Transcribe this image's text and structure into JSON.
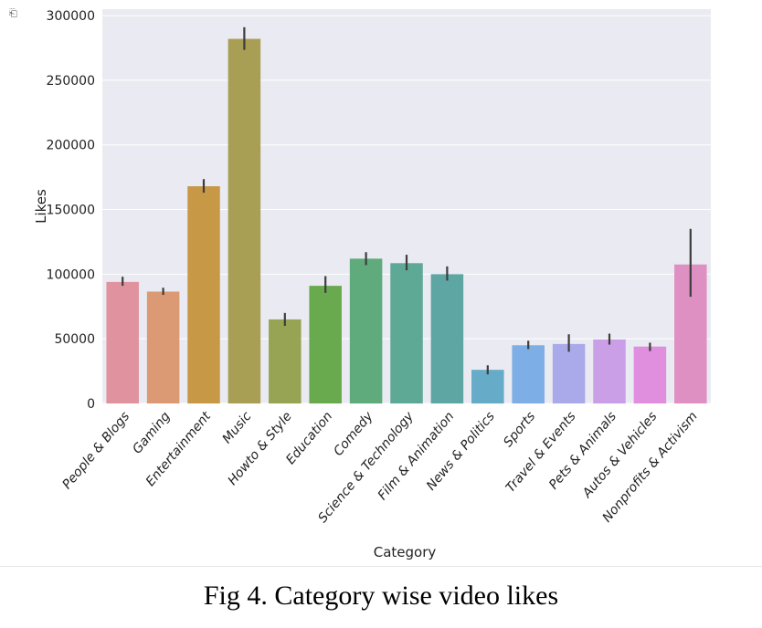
{
  "caption": "Fig 4. Category wise video likes",
  "output_icon": "output-cell-icon",
  "chart_data": {
    "type": "bar",
    "xlabel": "Category",
    "ylabel": "Likes",
    "ylim": [
      0,
      305000
    ],
    "yticks": [
      0,
      50000,
      100000,
      150000,
      200000,
      250000,
      300000
    ],
    "ytick_labels": [
      "0",
      "50000",
      "100000",
      "150000",
      "200000",
      "250000",
      "300000"
    ],
    "grid": true,
    "error_bars": true,
    "categories": [
      "People & Blogs",
      "Gaming",
      "Entertainment",
      "Music",
      "Howto & Style",
      "Education",
      "Comedy",
      "Science & Technology",
      "Film & Animation",
      "News & Politics",
      "Sports",
      "Travel & Events",
      "Pets & Animals",
      "Autos & Vehicles",
      "Nonprofits & Activism"
    ],
    "values": [
      94000,
      86500,
      168000,
      282000,
      65000,
      91000,
      112000,
      108500,
      100000,
      26000,
      45000,
      46000,
      49500,
      44000,
      107500
    ],
    "error_low": [
      91000,
      84000,
      163000,
      273500,
      60000,
      85500,
      107000,
      103000,
      95000,
      22500,
      42000,
      40000,
      45500,
      40500,
      82500
    ],
    "error_high": [
      98000,
      89500,
      173500,
      291000,
      70000,
      98500,
      117000,
      115000,
      106000,
      29500,
      48500,
      53500,
      54000,
      47000,
      135000
    ],
    "colors": [
      "#e0939f",
      "#dc9a74",
      "#c79846",
      "#a89f55",
      "#97a454",
      "#6aaa4f",
      "#5fab7c",
      "#5ea896",
      "#5ea6a4",
      "#66abc7",
      "#7eaee6",
      "#aaa9ea",
      "#cb9ee8",
      "#e08ede",
      "#df90c2"
    ],
    "background": "#eaeaf2"
  }
}
